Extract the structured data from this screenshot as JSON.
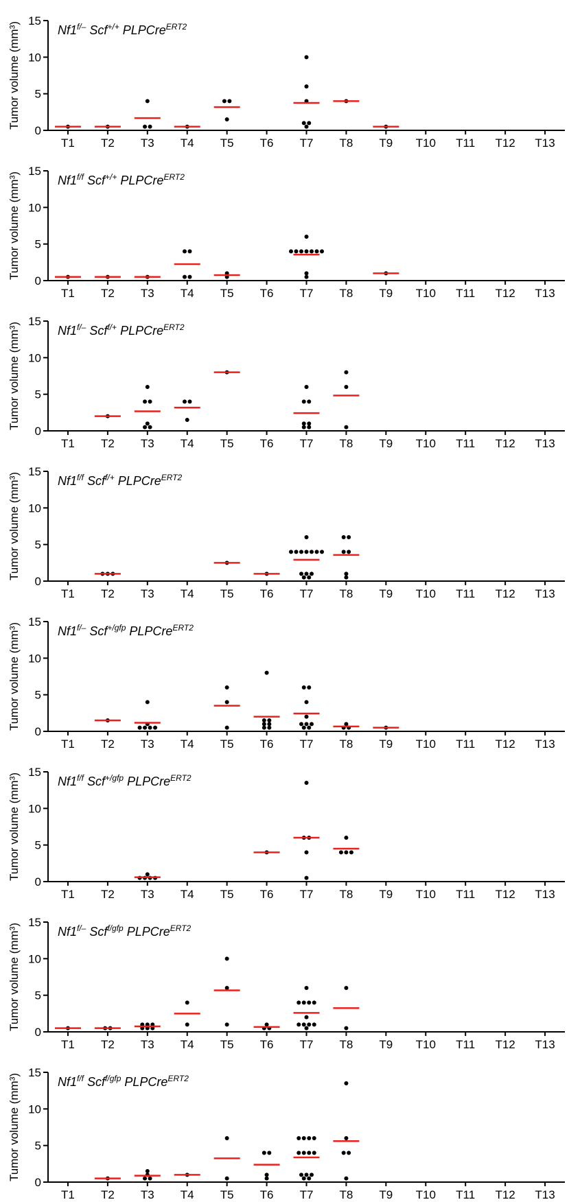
{
  "chart_data": [
    {
      "type": "dotplot",
      "title": [
        {
          "text": "Nf1",
          "sup": "f/–"
        },
        {
          "text": " Scf",
          "sup": "+/+"
        },
        {
          "text": " PLPCre",
          "sup": "ERT2"
        }
      ],
      "ylabel": "Tumor volume (mm³)",
      "categories": [
        "T1",
        "T2",
        "T3",
        "T4",
        "T5",
        "T6",
        "T7",
        "T8",
        "T9",
        "T10",
        "T11",
        "T12",
        "T13"
      ],
      "values": [
        [
          0.5
        ],
        [
          0.5
        ],
        [
          4,
          0.5,
          0.5
        ],
        [
          0.5
        ],
        [
          4,
          4,
          1.5
        ],
        [],
        [
          10,
          6,
          4,
          1,
          1,
          0.5
        ],
        [
          4
        ],
        [
          0.5
        ],
        [],
        [],
        [],
        []
      ],
      "means": [
        0.5,
        0.5,
        1.67,
        0.5,
        3.17,
        null,
        3.75,
        4,
        0.5,
        null,
        null,
        null,
        null
      ],
      "ylim": [
        0,
        15
      ],
      "yticks": [
        0,
        5,
        10,
        15
      ],
      "dot_color": "#000000",
      "mean_color": "#e8211e"
    },
    {
      "type": "dotplot",
      "title": [
        {
          "text": "Nf1",
          "sup": "f/f"
        },
        {
          "text": " Scf",
          "sup": "+/+"
        },
        {
          "text": " PLPCre",
          "sup": "ERT2"
        }
      ],
      "ylabel": "Tumor volume (mm³)",
      "categories": [
        "T1",
        "T2",
        "T3",
        "T4",
        "T5",
        "T6",
        "T7",
        "T8",
        "T9",
        "T10",
        "T11",
        "T12",
        "T13"
      ],
      "values": [
        [
          0.5
        ],
        [
          0.5
        ],
        [
          0.5
        ],
        [
          4,
          4,
          0.5,
          0.5
        ],
        [
          1,
          0.5
        ],
        [],
        [
          6,
          4,
          4,
          4,
          4,
          4,
          4,
          4,
          1,
          0.5
        ],
        [],
        [
          1
        ],
        [],
        [],
        [],
        []
      ],
      "means": [
        0.5,
        0.5,
        0.5,
        2.25,
        0.75,
        null,
        3.55,
        null,
        1,
        null,
        null,
        null,
        null
      ],
      "ylim": [
        0,
        15
      ],
      "yticks": [
        0,
        5,
        10,
        15
      ],
      "dot_color": "#000000",
      "mean_color": "#e8211e"
    },
    {
      "type": "dotplot",
      "title": [
        {
          "text": "Nf1",
          "sup": "f/–"
        },
        {
          "text": " Scf",
          "sup": "f/+"
        },
        {
          "text": " PLPCre",
          "sup": "ERT2"
        }
      ],
      "ylabel": "Tumor volume (mm³)",
      "categories": [
        "T1",
        "T2",
        "T3",
        "T4",
        "T5",
        "T6",
        "T7",
        "T8",
        "T9",
        "T10",
        "T11",
        "T12",
        "T13"
      ],
      "values": [
        [],
        [
          2
        ],
        [
          6,
          4,
          4,
          1,
          0.5,
          0.5
        ],
        [
          4,
          4,
          1.5
        ],
        [
          8
        ],
        [],
        [
          6,
          4,
          4,
          1,
          1,
          0.5,
          0.5
        ],
        [
          8,
          6,
          0.5
        ],
        [],
        [],
        [],
        [],
        []
      ],
      "means": [
        null,
        2,
        2.67,
        3.17,
        8,
        null,
        2.43,
        4.83,
        null,
        null,
        null,
        null,
        null
      ],
      "ylim": [
        0,
        15
      ],
      "yticks": [
        0,
        5,
        10,
        15
      ],
      "dot_color": "#000000",
      "mean_color": "#e8211e"
    },
    {
      "type": "dotplot",
      "title": [
        {
          "text": "Nf1",
          "sup": "f/f"
        },
        {
          "text": " Scf",
          "sup": "f/+"
        },
        {
          "text": " PLPCre",
          "sup": "ERT2"
        }
      ],
      "ylabel": "Tumor volume (mm³)",
      "categories": [
        "T1",
        "T2",
        "T3",
        "T4",
        "T5",
        "T6",
        "T7",
        "T8",
        "T9",
        "T10",
        "T11",
        "T12",
        "T13"
      ],
      "values": [
        [],
        [
          1,
          1,
          1
        ],
        [],
        [],
        [
          2.5
        ],
        [
          1
        ],
        [
          6,
          4,
          4,
          4,
          4,
          4,
          4,
          4,
          1,
          1,
          1,
          0.5,
          0.5
        ],
        [
          6,
          6,
          4,
          4,
          1,
          0.5
        ],
        [],
        [],
        [],
        [],
        []
      ],
      "means": [
        null,
        1,
        null,
        null,
        2.5,
        1,
        2.92,
        3.58,
        null,
        null,
        null,
        null,
        null
      ],
      "ylim": [
        0,
        15
      ],
      "yticks": [
        0,
        5,
        10,
        15
      ],
      "dot_color": "#000000",
      "mean_color": "#e8211e"
    },
    {
      "type": "dotplot",
      "title": [
        {
          "text": "Nf1",
          "sup": "f/–"
        },
        {
          "text": " Scf",
          "sup": "+/gfp"
        },
        {
          "text": " PLPCre",
          "sup": "ERT2"
        }
      ],
      "ylabel": "Tumor volume (mm³)",
      "categories": [
        "T1",
        "T2",
        "T3",
        "T4",
        "T5",
        "T6",
        "T7",
        "T8",
        "T9",
        "T10",
        "T11",
        "T12",
        "T13"
      ],
      "values": [
        [],
        [
          1.5
        ],
        [
          4,
          1,
          0.5,
          0.5,
          0.5,
          0.5
        ],
        [],
        [
          6,
          4,
          0.5
        ],
        [
          8,
          1.5,
          1.5,
          1,
          1,
          0.5,
          0.5
        ],
        [
          6,
          6,
          4,
          2,
          1,
          1,
          1,
          0.5,
          0.5
        ],
        [
          1,
          0.5,
          0.5
        ],
        [
          0.5
        ],
        [],
        [],
        [],
        []
      ],
      "means": [
        null,
        1.5,
        1.17,
        null,
        3.5,
        2,
        2.44,
        0.67,
        0.5,
        null,
        null,
        null,
        null
      ],
      "ylim": [
        0,
        15
      ],
      "yticks": [
        0,
        5,
        10,
        15
      ],
      "dot_color": "#000000",
      "mean_color": "#e8211e"
    },
    {
      "type": "dotplot",
      "title": [
        {
          "text": "Nf1",
          "sup": "f/f"
        },
        {
          "text": " Scf",
          "sup": "+/gfp"
        },
        {
          "text": " PLPCre",
          "sup": "ERT2"
        }
      ],
      "ylabel": "Tumor volume (mm³)",
      "categories": [
        "T1",
        "T2",
        "T3",
        "T4",
        "T5",
        "T6",
        "T7",
        "T8",
        "T9",
        "T10",
        "T11",
        "T12",
        "T13"
      ],
      "values": [
        [],
        [],
        [
          1,
          0.5,
          0.5,
          0.5,
          0.5
        ],
        [],
        [],
        [
          4
        ],
        [
          13.5,
          6,
          6,
          4,
          0.5
        ],
        [
          6,
          4,
          4,
          4
        ],
        [],
        [],
        [],
        [],
        []
      ],
      "means": [
        null,
        null,
        0.6,
        null,
        null,
        4,
        6,
        4.5,
        null,
        null,
        null,
        null,
        null
      ],
      "ylim": [
        0,
        15
      ],
      "yticks": [
        0,
        5,
        10,
        15
      ],
      "dot_color": "#000000",
      "mean_color": "#e8211e"
    },
    {
      "type": "dotplot",
      "title": [
        {
          "text": "Nf1",
          "sup": "f/–"
        },
        {
          "text": " Scf",
          "sup": "f/gfp"
        },
        {
          "text": " PLPCre",
          "sup": "ERT2"
        }
      ],
      "ylabel": "Tumor volume (mm³)",
      "categories": [
        "T1",
        "T2",
        "T3",
        "T4",
        "T5",
        "T6",
        "T7",
        "T8",
        "T9",
        "T10",
        "T11",
        "T12",
        "T13"
      ],
      "values": [
        [
          0.5
        ],
        [
          0.5,
          0.5
        ],
        [
          1,
          1,
          1,
          0.5,
          0.5,
          0.5
        ],
        [
          4,
          1
        ],
        [
          10,
          6,
          1
        ],
        [
          1,
          0.5,
          0.5
        ],
        [
          6,
          4,
          4,
          4,
          4,
          2,
          1,
          1,
          1,
          1,
          0.5
        ],
        [
          6,
          0.5
        ],
        [],
        [],
        [],
        [],
        []
      ],
      "means": [
        0.5,
        0.5,
        0.75,
        2.5,
        5.67,
        0.67,
        2.59,
        3.25,
        null,
        null,
        null,
        null,
        null
      ],
      "ylim": [
        0,
        15
      ],
      "yticks": [
        0,
        5,
        10,
        15
      ],
      "dot_color": "#000000",
      "mean_color": "#e8211e"
    },
    {
      "type": "dotplot",
      "title": [
        {
          "text": "Nf1",
          "sup": "f/f"
        },
        {
          "text": " Scf",
          "sup": "f/gfp"
        },
        {
          "text": " PLPCre",
          "sup": "ERT2"
        }
      ],
      "ylabel": "Tumor volume (mm³)",
      "categories": [
        "T1",
        "T2",
        "T3",
        "T4",
        "T5",
        "T6",
        "T7",
        "T8",
        "T9",
        "T10",
        "T11",
        "T12",
        "T13"
      ],
      "values": [
        [],
        [
          0.5
        ],
        [
          1.5,
          1,
          0.5,
          0.5
        ],
        [
          1
        ],
        [
          6,
          0.5
        ],
        [
          4,
          4,
          1,
          0.5
        ],
        [
          6,
          6,
          6,
          6,
          4,
          4,
          4,
          4,
          1,
          1,
          1,
          0.5,
          0.5
        ],
        [
          13.5,
          6,
          4,
          4,
          0.5
        ],
        [],
        [],
        [],
        [],
        []
      ],
      "means": [
        null,
        0.5,
        0.88,
        1,
        3.25,
        2.38,
        3.38,
        5.6,
        null,
        null,
        null,
        null,
        null
      ],
      "ylim": [
        0,
        15
      ],
      "yticks": [
        0,
        5,
        10,
        15
      ],
      "dot_color": "#000000",
      "mean_color": "#e8211e"
    }
  ]
}
